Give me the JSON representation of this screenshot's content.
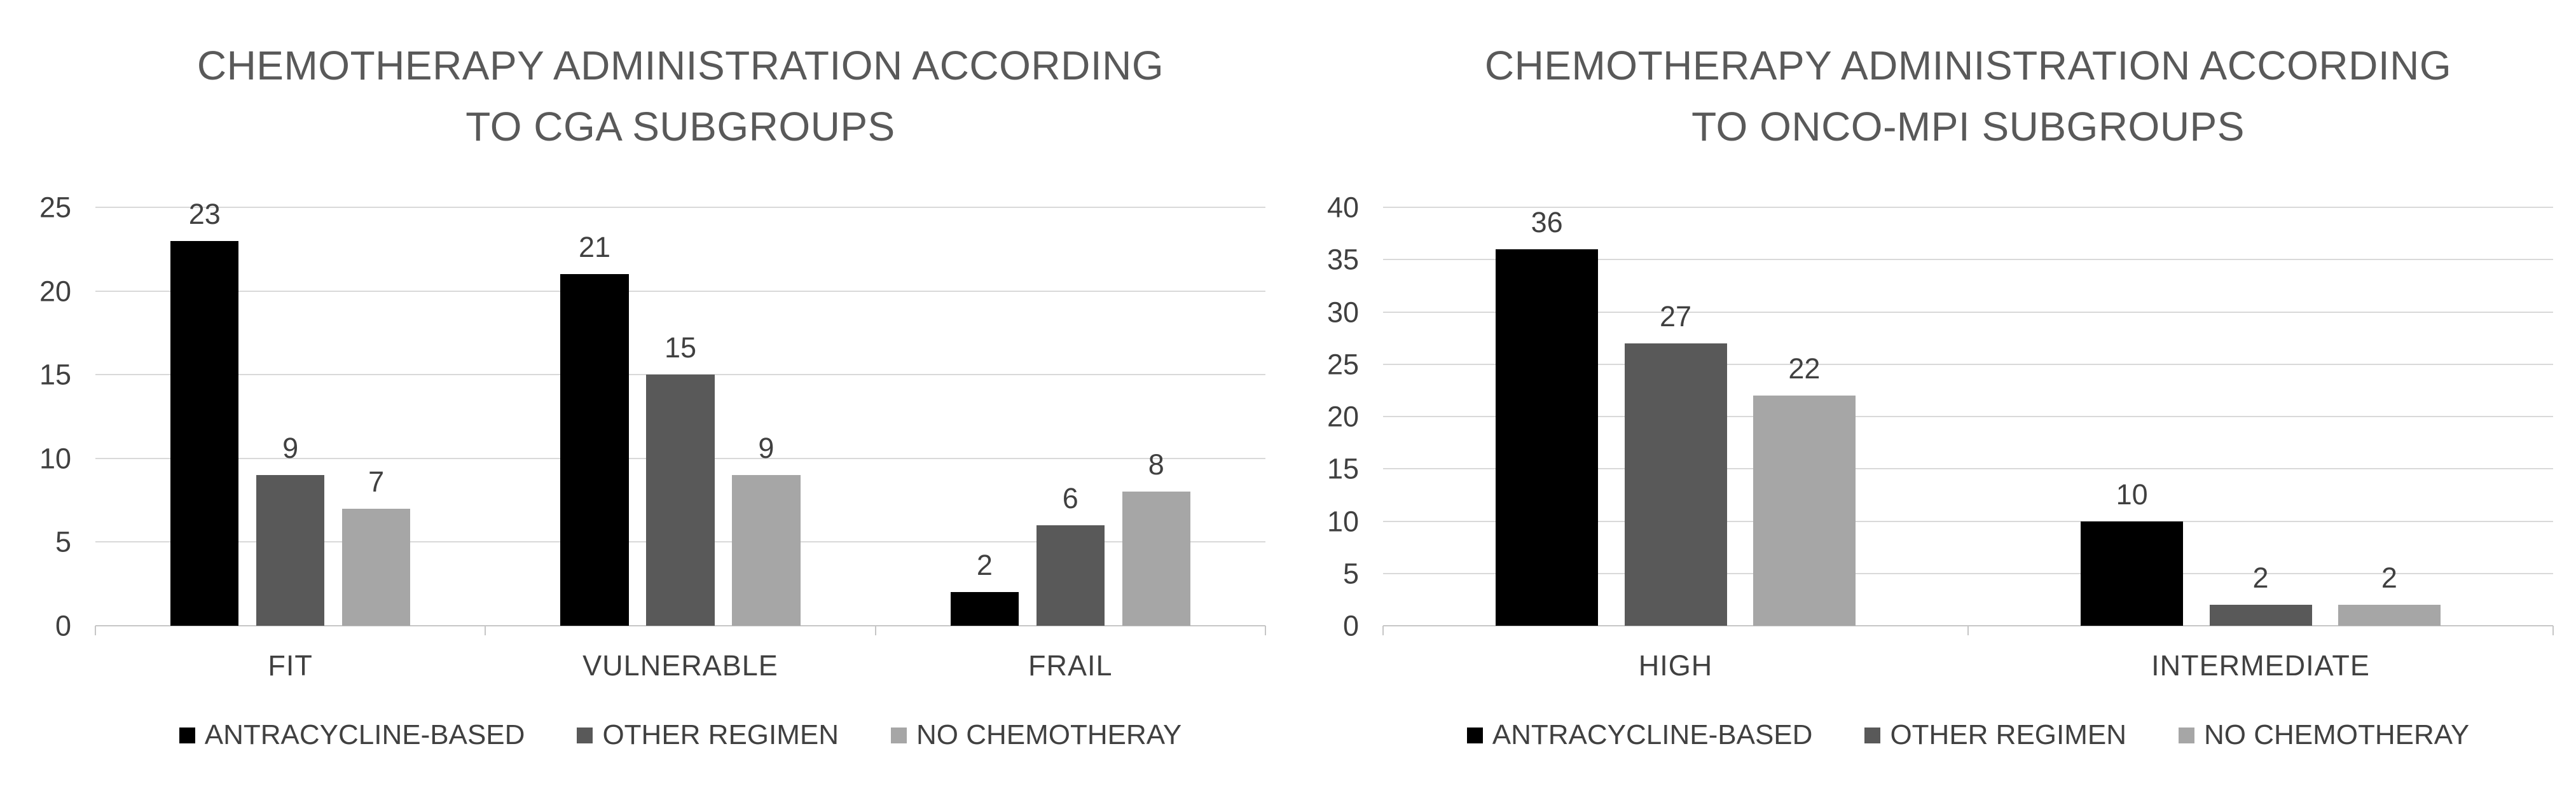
{
  "colors": {
    "series": [
      "#000000",
      "#595959",
      "#a6a6a6"
    ],
    "title_text": "#595959",
    "axis_text": "#404040",
    "gridline": "#d9d9d9",
    "axis_line": "#c6c6c6",
    "background": "#ffffff"
  },
  "chart_data": [
    {
      "type": "bar",
      "title": "CHEMOTHERAPY ADMINISTRATION ACCORDING TO CGA SUBGROUPS",
      "title_lines": [
        "CHEMOTHERAPY ADMINISTRATION ACCORDING",
        "TO CGA SUBGROUPS"
      ],
      "categories": [
        "FIT",
        "VULNERABLE",
        "FRAIL"
      ],
      "series": [
        {
          "name": "ANTRACYCLINE-BASED",
          "values": [
            23,
            21,
            2
          ]
        },
        {
          "name": "OTHER REGIMEN",
          "values": [
            9,
            15,
            6
          ]
        },
        {
          "name": "NO CHEMOTHERAY",
          "values": [
            7,
            9,
            8
          ]
        }
      ],
      "xlabel": "",
      "ylabel": "",
      "ylim": [
        0,
        25
      ],
      "y_step": 5,
      "grid": true,
      "value_labels": true,
      "legend_position": "bottom"
    },
    {
      "type": "bar",
      "title": "CHEMOTHERAPY ADMINISTRATION ACCORDING TO ONCO-MPI SUBGROUPS",
      "title_lines": [
        "CHEMOTHERAPY ADMINISTRATION ACCORDING",
        "TO ONCO-MPI SUBGROUPS"
      ],
      "categories": [
        "HIGH",
        "INTERMEDIATE"
      ],
      "series": [
        {
          "name": "ANTRACYCLINE-BASED",
          "values": [
            36,
            10
          ]
        },
        {
          "name": "OTHER REGIMEN",
          "values": [
            27,
            2
          ]
        },
        {
          "name": "NO CHEMOTHERAY",
          "values": [
            22,
            2
          ]
        }
      ],
      "xlabel": "",
      "ylabel": "",
      "ylim": [
        0,
        40
      ],
      "y_step": 5,
      "grid": true,
      "value_labels": true,
      "legend_position": "bottom"
    }
  ]
}
